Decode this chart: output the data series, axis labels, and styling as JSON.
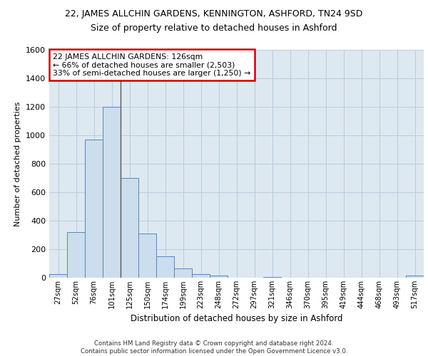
{
  "title_line1": "22, JAMES ALLCHIN GARDENS, KENNINGTON, ASHFORD, TN24 9SD",
  "title_line2": "Size of property relative to detached houses in Ashford",
  "xlabel": "Distribution of detached houses by size in Ashford",
  "ylabel": "Number of detached properties",
  "bar_labels": [
    "27sqm",
    "52sqm",
    "76sqm",
    "101sqm",
    "125sqm",
    "150sqm",
    "174sqm",
    "199sqm",
    "223sqm",
    "248sqm",
    "272sqm",
    "297sqm",
    "321sqm",
    "346sqm",
    "370sqm",
    "395sqm",
    "419sqm",
    "444sqm",
    "468sqm",
    "493sqm",
    "517sqm"
  ],
  "bar_values": [
    25,
    320,
    970,
    1200,
    700,
    310,
    150,
    65,
    25,
    15,
    0,
    0,
    5,
    0,
    0,
    0,
    0,
    0,
    0,
    0,
    15
  ],
  "bar_color": "#ccdded",
  "bar_edge_color": "#5588bb",
  "annotation_line1": "22 JAMES ALLCHIN GARDENS: 126sqm",
  "annotation_line2": "← 66% of detached houses are smaller (2,503)",
  "annotation_line3": "33% of semi-detached houses are larger (1,250) →",
  "annotation_box_color": "white",
  "annotation_box_edge": "#cc0000",
  "vline_x": 3.5,
  "vline_color": "#555555",
  "ylim": [
    0,
    1600
  ],
  "yticks": [
    0,
    200,
    400,
    600,
    800,
    1000,
    1200,
    1400,
    1600
  ],
  "grid_color": "#b8ccdd",
  "bg_color": "#dde8f0",
  "title1_fontsize": 9,
  "title2_fontsize": 9,
  "footer": "Contains HM Land Registry data © Crown copyright and database right 2024.\nContains public sector information licensed under the Open Government Licence v3.0."
}
